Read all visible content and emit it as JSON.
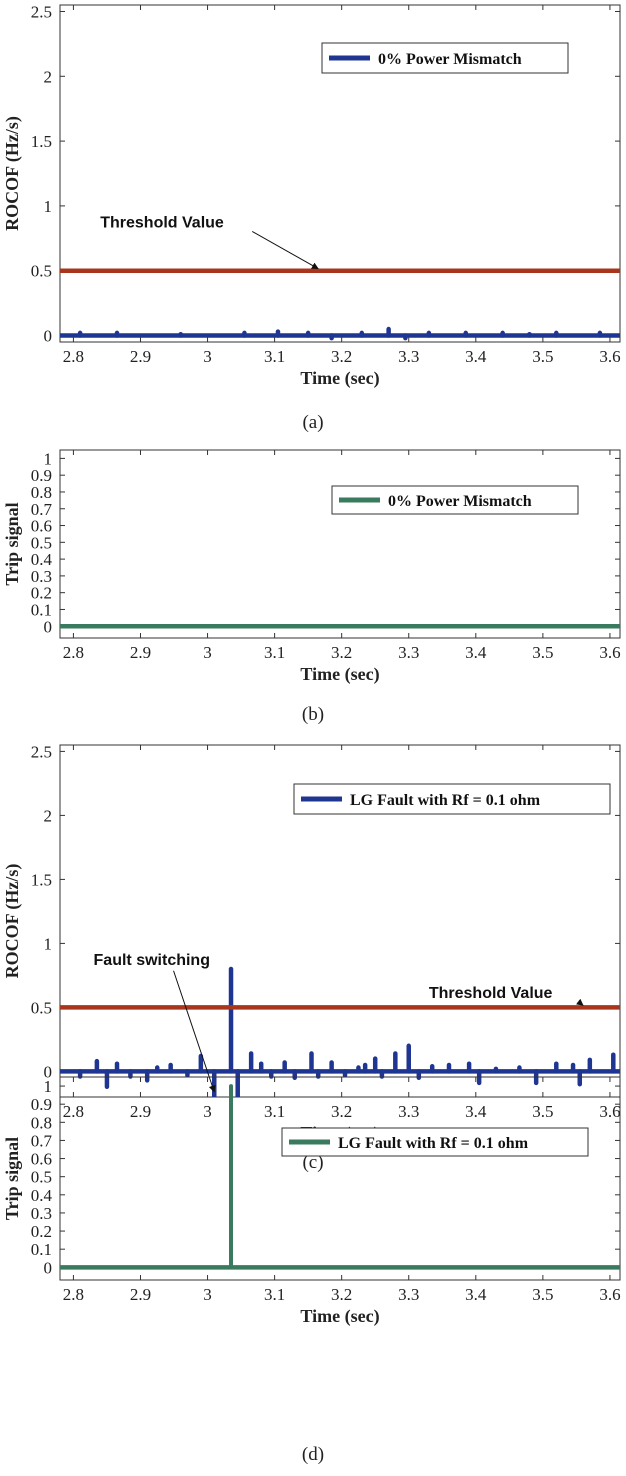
{
  "colors": {
    "rocof": "#1f3592",
    "threshold": "#a8361c",
    "trip": "#3a7a5e",
    "axis": "#333333"
  },
  "chart_data": [
    {
      "id": "a",
      "type": "line",
      "caption": "(a)",
      "xlabel": "Time (sec)",
      "ylabel": "ROCOF (Hz/s)",
      "xlim": [
        2.78,
        3.615
      ],
      "ylim": [
        -0.05,
        2.55
      ],
      "xticks": [
        2.8,
        2.9,
        3.0,
        3.1,
        3.2,
        3.3,
        3.4,
        3.5,
        3.6
      ],
      "xtick_labels": [
        "2.8",
        "2.9",
        "3",
        "3.1",
        "3.2",
        "3.3",
        "3.4",
        "3.5",
        "3.6"
      ],
      "yticks": [
        0,
        0.5,
        1,
        1.5,
        2,
        2.5
      ],
      "ytick_labels": [
        "0",
        "0.5",
        "1",
        "1.5",
        "2",
        "2.5"
      ],
      "legend": "0% Power Mismatch",
      "legend_series": "rocof",
      "legend_position": "top-right",
      "threshold": 0.5,
      "threshold_label": "Threshold Value",
      "threshold_arrow": {
        "text_x": 2.84,
        "text_y": 0.88,
        "head_x": 3.165,
        "head_y": 0.5
      },
      "series": [
        {
          "name": "ROCOF",
          "style": "rocof",
          "baseline": 0,
          "spikes": [
            [
              2.81,
              0.02
            ],
            [
              2.865,
              0.02
            ],
            [
              2.96,
              0.01
            ],
            [
              3.055,
              0.02
            ],
            [
              3.105,
              0.03
            ],
            [
              3.15,
              0.02
            ],
            [
              3.185,
              -0.02
            ],
            [
              3.23,
              0.02
            ],
            [
              3.27,
              0.05
            ],
            [
              3.295,
              -0.02
            ],
            [
              3.33,
              0.02
            ],
            [
              3.385,
              0.02
            ],
            [
              3.44,
              0.02
            ],
            [
              3.48,
              0.01
            ],
            [
              3.52,
              0.02
            ],
            [
              3.585,
              0.02
            ]
          ]
        },
        {
          "name": "Threshold",
          "style": "threshold",
          "constant": 0.5
        }
      ]
    },
    {
      "id": "b",
      "type": "line",
      "caption": "(b)",
      "xlabel": "Time (sec)",
      "ylabel": "Trip signal",
      "xlim": [
        2.78,
        3.615
      ],
      "ylim": [
        -0.07,
        1.05
      ],
      "xticks": [
        2.8,
        2.9,
        3.0,
        3.1,
        3.2,
        3.3,
        3.4,
        3.5,
        3.6
      ],
      "xtick_labels": [
        "2.8",
        "2.9",
        "3",
        "3.1",
        "3.2",
        "3.3",
        "3.4",
        "3.5",
        "3.6"
      ],
      "yticks": [
        0,
        0.1,
        0.2,
        0.3,
        0.4,
        0.5,
        0.6,
        0.7,
        0.8,
        0.9,
        1
      ],
      "ytick_labels": [
        "0",
        "0.1",
        "0.2",
        "0.3",
        "0.4",
        "0.5",
        "0.6",
        "0.7",
        "0.8",
        "0.9",
        "1"
      ],
      "legend": "0% Power Mismatch",
      "legend_series": "trip",
      "legend_position": "top-right",
      "series": [
        {
          "name": "Trip signal",
          "style": "trip",
          "baseline": 0,
          "spikes": []
        }
      ]
    },
    {
      "id": "c",
      "type": "line",
      "caption": "(c)",
      "xlabel": "Time (sec)",
      "ylabel": "ROCOF (Hz/s)",
      "xlim": [
        2.78,
        3.615
      ],
      "ylim": [
        -0.2,
        2.55
      ],
      "xticks": [
        2.8,
        2.9,
        3.0,
        3.1,
        3.2,
        3.3,
        3.4,
        3.5,
        3.6
      ],
      "xtick_labels": [
        "2.8",
        "2.9",
        "3",
        "3.1",
        "3.2",
        "3.3",
        "3.4",
        "3.5",
        "3.6"
      ],
      "yticks": [
        0,
        0.5,
        1,
        1.5,
        2,
        2.5
      ],
      "ytick_labels": [
        "0",
        "0.5",
        "1",
        "1.5",
        "2",
        "2.5"
      ],
      "legend": "LG Fault with Rf = 0.1 ohm",
      "legend_series": "rocof",
      "legend_position": "top-right",
      "threshold": 0.5,
      "threshold_label": "Threshold Value",
      "threshold_arrow": {
        "text_x": 3.33,
        "text_y": 0.62,
        "head_x": 3.56,
        "head_y": 0.5
      },
      "fault_label": "Fault switching",
      "fault_arrow": {
        "text_x": 2.83,
        "text_y": 0.88,
        "head_x": 3.01,
        "head_y": -0.16
      },
      "series": [
        {
          "name": "ROCOF",
          "style": "rocof",
          "baseline": 0,
          "spikes": [
            [
              2.81,
              -0.04
            ],
            [
              2.835,
              0.08
            ],
            [
              2.85,
              -0.12
            ],
            [
              2.865,
              0.06
            ],
            [
              2.885,
              -0.04
            ],
            [
              2.91,
              -0.07
            ],
            [
              2.925,
              0.03
            ],
            [
              2.945,
              0.05
            ],
            [
              2.97,
              -0.03
            ],
            [
              2.99,
              0.12
            ],
            [
              3.01,
              -0.2
            ],
            [
              3.035,
              0.8
            ],
            [
              3.045,
              -0.2
            ],
            [
              3.065,
              0.14
            ],
            [
              3.08,
              0.06
            ],
            [
              3.095,
              -0.04
            ],
            [
              3.115,
              0.07
            ],
            [
              3.13,
              -0.05
            ],
            [
              3.155,
              0.14
            ],
            [
              3.165,
              -0.04
            ],
            [
              3.185,
              0.07
            ],
            [
              3.205,
              -0.03
            ],
            [
              3.225,
              0.03
            ],
            [
              3.235,
              0.05
            ],
            [
              3.25,
              0.1
            ],
            [
              3.26,
              -0.04
            ],
            [
              3.28,
              0.14
            ],
            [
              3.3,
              0.2
            ],
            [
              3.315,
              -0.05
            ],
            [
              3.335,
              0.04
            ],
            [
              3.36,
              0.05
            ],
            [
              3.39,
              0.06
            ],
            [
              3.405,
              -0.09
            ],
            [
              3.43,
              0.02
            ],
            [
              3.465,
              0.03
            ],
            [
              3.49,
              -0.09
            ],
            [
              3.52,
              0.06
            ],
            [
              3.545,
              0.05
            ],
            [
              3.555,
              -0.1
            ],
            [
              3.57,
              0.09
            ],
            [
              3.605,
              0.13
            ]
          ]
        },
        {
          "name": "Threshold",
          "style": "threshold",
          "constant": 0.5
        }
      ]
    },
    {
      "id": "d",
      "type": "line",
      "caption": "(d)",
      "xlabel": "Time (sec)",
      "ylabel": "Trip signal",
      "xlim": [
        2.78,
        3.615
      ],
      "ylim": [
        -0.07,
        1.05
      ],
      "xticks": [
        2.8,
        2.9,
        3.0,
        3.1,
        3.2,
        3.3,
        3.4,
        3.5,
        3.6
      ],
      "xtick_labels": [
        "2.8",
        "2.9",
        "3",
        "3.1",
        "3.2",
        "3.3",
        "3.4",
        "3.5",
        "3.6"
      ],
      "yticks": [
        0,
        0.1,
        0.2,
        0.3,
        0.4,
        0.5,
        0.6,
        0.7,
        0.8,
        0.9,
        1
      ],
      "ytick_labels": [
        "0",
        "0.1",
        "0.2",
        "0.3",
        "0.4",
        "0.5",
        "0.6",
        "0.7",
        "0.8",
        "0.9",
        "1"
      ],
      "legend": "LG Fault with Rf = 0.1 ohm",
      "legend_series": "trip",
      "legend_position": "top-right",
      "series": [
        {
          "name": "Trip signal",
          "style": "trip",
          "baseline": 0,
          "spikes": [
            [
              3.035,
              1.0
            ]
          ]
        }
      ]
    }
  ]
}
